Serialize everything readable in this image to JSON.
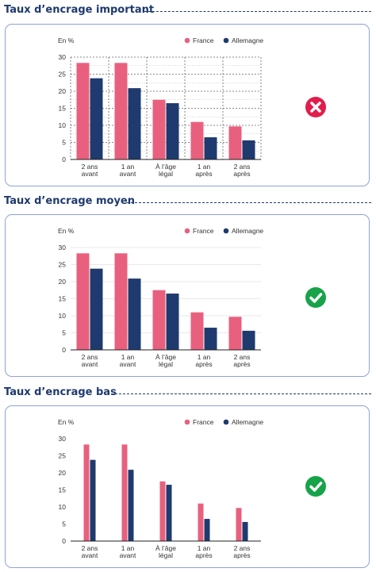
{
  "sections": [
    {
      "title": "Taux d’encrage important",
      "status": "cross-icon",
      "status_color": "#e11d4b"
    },
    {
      "title": "Taux d’encrage moyen",
      "status": "check-icon",
      "status_color": "#17a34a"
    },
    {
      "title": "Taux d’encrage bas",
      "status": "check-icon",
      "status_color": "#17a34a"
    }
  ],
  "colors": {
    "france": "#e8607e",
    "allemagne": "#1f3a6e",
    "title": "#1f3a6e",
    "card_border": "#8ea3d6"
  },
  "chart_data": [
    {
      "type": "bar",
      "ylabel": "En %",
      "ylim": [
        0,
        30
      ],
      "yticks": [
        "0",
        "5",
        "10",
        "15",
        "20",
        "25",
        "30"
      ],
      "grid": "dense dashed",
      "legend": "top-right",
      "categories": [
        "2 ans|avant",
        "1 an|avant",
        "À l’âge|légal",
        "1 an|après",
        "2 ans|après"
      ],
      "series": [
        {
          "name": "France",
          "values": [
            28.3,
            28.3,
            17.5,
            11.0,
            9.7
          ]
        },
        {
          "name": "Allemagne",
          "values": [
            23.8,
            20.9,
            16.5,
            6.5,
            5.6
          ]
        }
      ]
    },
    {
      "type": "bar",
      "ylabel": "En %",
      "ylim": [
        0,
        30
      ],
      "yticks": [
        "0",
        "5",
        "10",
        "15",
        "20",
        "25",
        "30"
      ],
      "grid": "light horizontal",
      "legend": "top-right",
      "categories": [
        "2 ans|avant",
        "1 an|avant",
        "À l’âge|légal",
        "1 an|après",
        "2 ans|après"
      ],
      "series": [
        {
          "name": "France",
          "values": [
            28.3,
            28.3,
            17.5,
            11.0,
            9.7
          ]
        },
        {
          "name": "Allemagne",
          "values": [
            23.8,
            20.9,
            16.5,
            6.5,
            5.6
          ]
        }
      ]
    },
    {
      "type": "bar",
      "ylabel": "En %",
      "ylim": [
        0,
        30
      ],
      "yticks": [
        "0",
        "5",
        "10",
        "15",
        "20",
        "25",
        "30"
      ],
      "grid": "none",
      "legend": "top-right",
      "categories": [
        "2 ans|avant",
        "1 an|avant",
        "À l’âge|légal",
        "1 an|après",
        "2 ans|après"
      ],
      "series": [
        {
          "name": "France",
          "values": [
            28.3,
            28.3,
            17.5,
            11.0,
            9.7
          ]
        },
        {
          "name": "Allemagne",
          "values": [
            23.8,
            20.9,
            16.5,
            6.5,
            5.6
          ]
        }
      ]
    }
  ]
}
